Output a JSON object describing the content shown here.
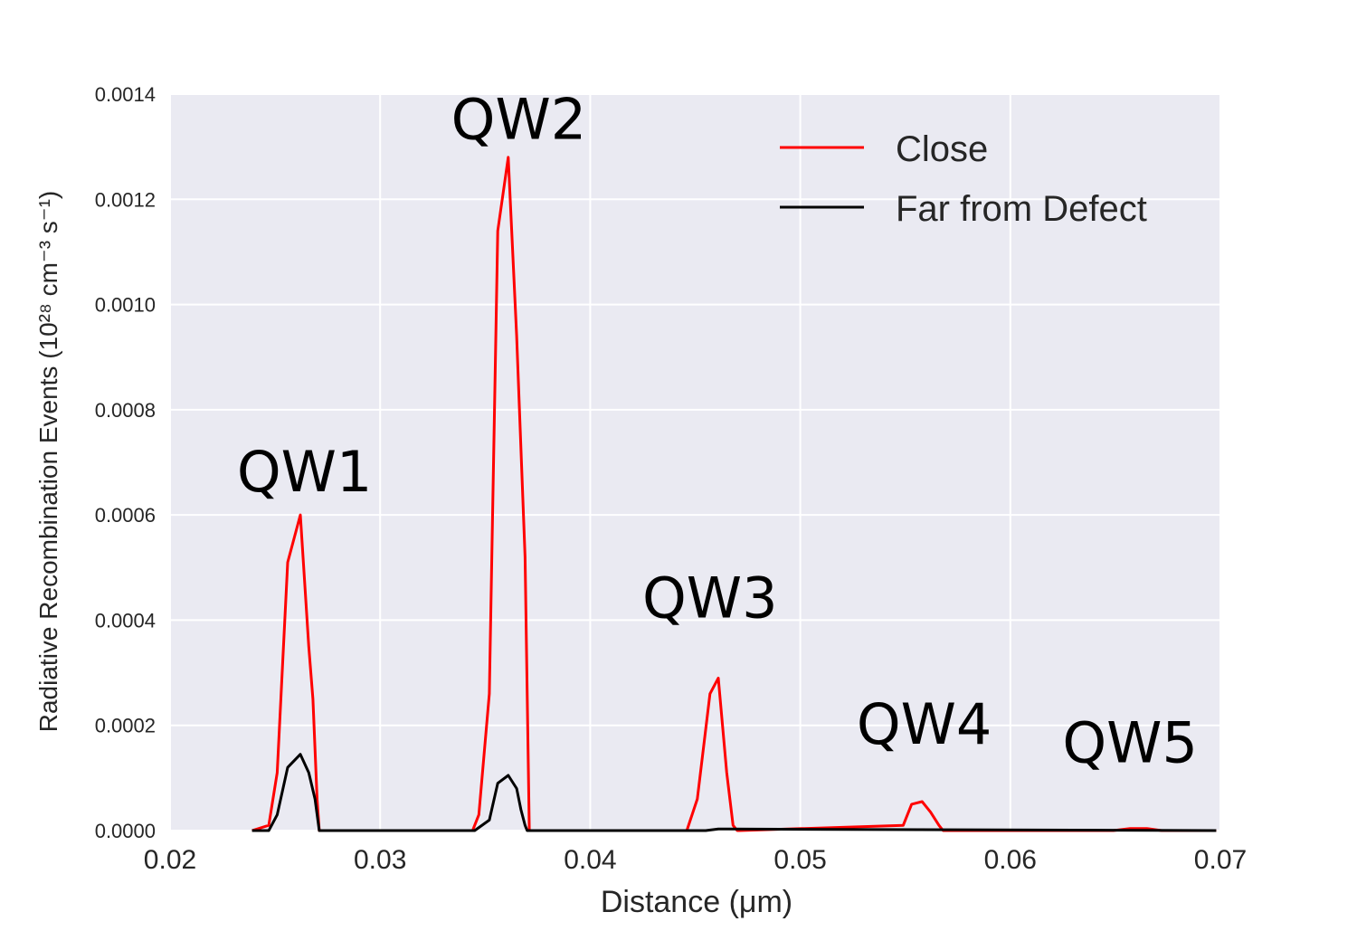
{
  "chart_data": {
    "type": "line",
    "title": "",
    "xlabel": "Distance (μm)",
    "ylabel": "Radiative Recombination Events (10²⁸ cm⁻³ s⁻¹)",
    "xlim": [
      0.02,
      0.07
    ],
    "ylim": [
      0.0,
      0.0014
    ],
    "x_ticks": [
      "0.02",
      "0.03",
      "0.04",
      "0.05",
      "0.06",
      "0.07"
    ],
    "x_tick_values": [
      0.02,
      0.03,
      0.04,
      0.05,
      0.06,
      0.07
    ],
    "y_ticks": [
      "0.0000",
      "0.0002",
      "0.0004",
      "0.0006",
      "0.0008",
      "0.0010",
      "0.0012",
      "0.0014"
    ],
    "y_tick_values": [
      0.0,
      0.0002,
      0.0004,
      0.0006,
      0.0008,
      0.001,
      0.0012,
      0.0014
    ],
    "grid": true,
    "legend_position": "top-right",
    "series": [
      {
        "name": "Close",
        "color": "#ff0000",
        "x": [
          0.0239,
          0.0247,
          0.0251,
          0.0256,
          0.0262,
          0.0266,
          0.0268,
          0.027,
          0.0271,
          0.0344,
          0.0347,
          0.0352,
          0.0356,
          0.0361,
          0.0365,
          0.0369,
          0.0371,
          0.0446,
          0.0451,
          0.0457,
          0.0461,
          0.0465,
          0.0468,
          0.047,
          0.0471,
          0.0549,
          0.0553,
          0.0558,
          0.0562,
          0.0566,
          0.0568,
          0.0649,
          0.0657,
          0.0665,
          0.0672,
          0.0698
        ],
        "y": [
          0.0,
          1e-05,
          0.00011,
          0.00051,
          0.0006,
          0.00035,
          0.00025,
          6e-05,
          0.0,
          0.0,
          3e-05,
          0.00026,
          0.00114,
          0.00128,
          0.00094,
          0.00052,
          0.0,
          0.0,
          6e-05,
          0.00026,
          0.00029,
          0.00011,
          1e-05,
          0.0,
          0.0,
          1e-05,
          5e-05,
          5.5e-05,
          3.5e-05,
          1e-05,
          0.0,
          0.0,
          4e-06,
          4e-06,
          0.0,
          0.0
        ]
      },
      {
        "name": "Far from Defect",
        "color": "#000000",
        "x": [
          0.0239,
          0.0247,
          0.0251,
          0.0256,
          0.0262,
          0.0266,
          0.0269,
          0.0271,
          0.0345,
          0.0352,
          0.0356,
          0.0361,
          0.0365,
          0.0367,
          0.0369,
          0.037,
          0.0455,
          0.0461,
          0.0466,
          0.0698
        ],
        "y": [
          0.0,
          0.0,
          3e-05,
          0.00012,
          0.000145,
          0.00011,
          6e-05,
          0.0,
          0.0,
          2e-05,
          9e-05,
          0.000105,
          8e-05,
          4e-05,
          1e-05,
          0.0,
          0.0,
          3e-06,
          3e-06,
          0.0
        ]
      }
    ],
    "annotations": [
      {
        "text": "QW1",
        "x": 0.0264,
        "y": 0.000645
      },
      {
        "text": "QW2",
        "x": 0.0366,
        "y": 0.001315
      },
      {
        "text": "QW3",
        "x": 0.0457,
        "y": 0.000405
      },
      {
        "text": "QW4",
        "x": 0.0559,
        "y": 0.000165
      },
      {
        "text": "QW5",
        "x": 0.0657,
        "y": 0.00013
      }
    ]
  }
}
